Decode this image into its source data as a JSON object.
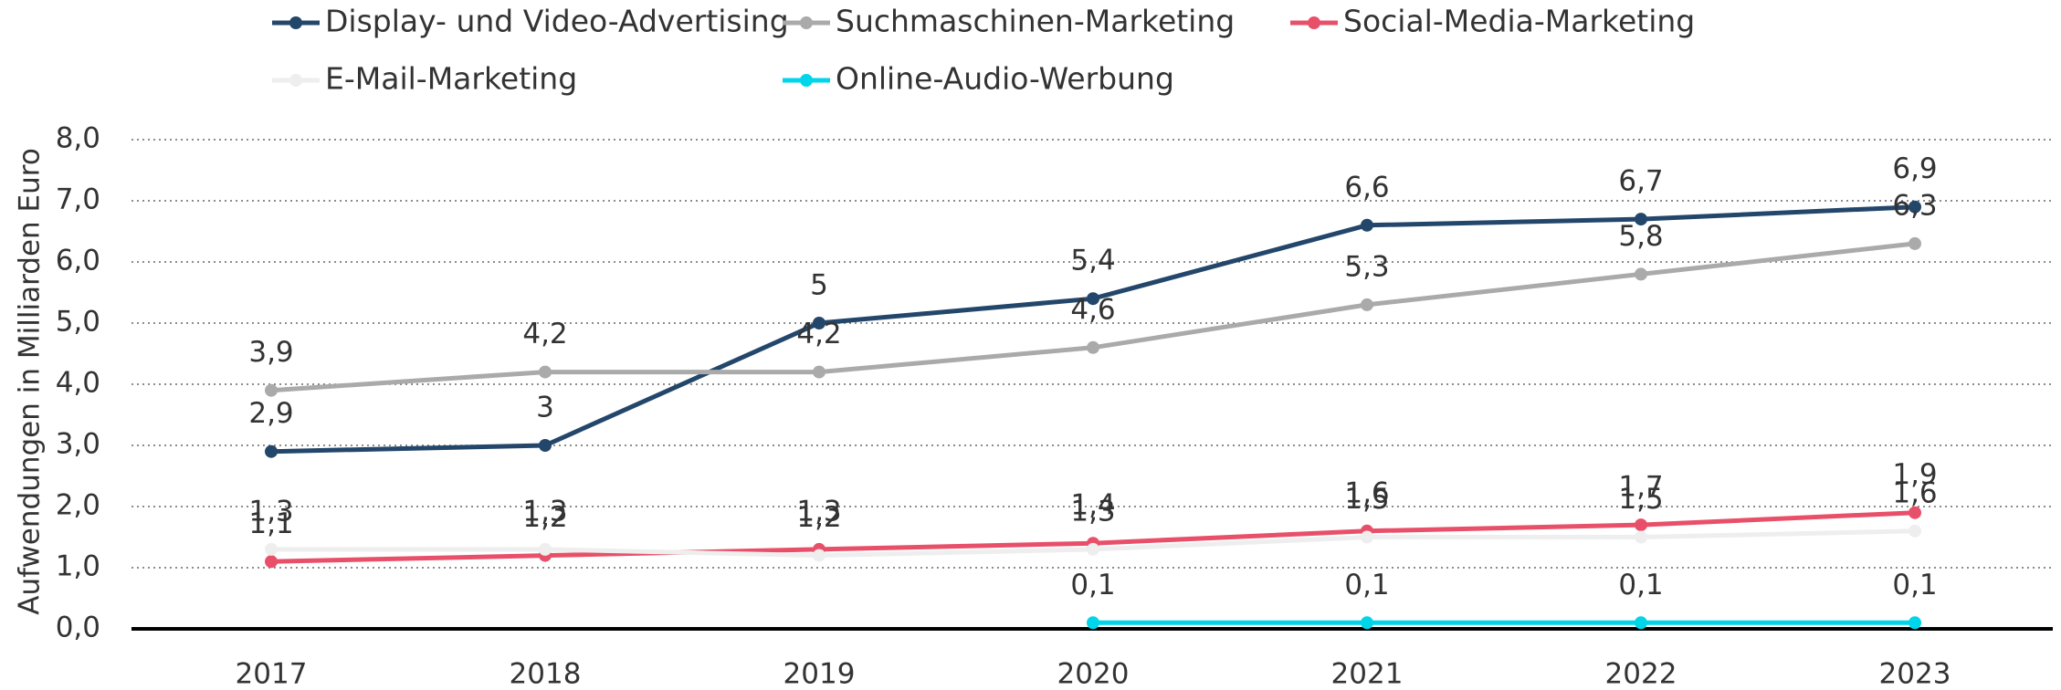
{
  "chart_data": {
    "type": "line",
    "y_label": "Aufwendungen in Milliarden Euro",
    "categories": [
      "2017",
      "2018",
      "2019",
      "2020",
      "2021",
      "2022",
      "2023"
    ],
    "series": [
      {
        "name": "Display- und Video-Advertising",
        "color": "#23466b",
        "values": [
          2.9,
          3,
          5,
          5.4,
          6.6,
          6.7,
          6.9
        ],
        "value_labels": [
          "2,9",
          "3",
          "5",
          "5,4",
          "6,6",
          "6,7",
          "6,9"
        ]
      },
      {
        "name": "Suchmaschinen-Marketing",
        "color": "#aaaaaa",
        "values": [
          3.9,
          4.2,
          4.2,
          4.6,
          5.3,
          5.8,
          6.3
        ],
        "value_labels": [
          "3,9",
          "4,2",
          "4,2",
          "4,6",
          "5,3",
          "5,8",
          "6,3"
        ]
      },
      {
        "name": "Social-Media-Marketing",
        "color": "#e8506a",
        "values": [
          1.1,
          1.2,
          1.3,
          1.4,
          1.6,
          1.7,
          1.9
        ],
        "value_labels": [
          "1,1",
          "1,2",
          "1,3",
          "1,4",
          "1,6",
          "1,7",
          "1,9"
        ]
      },
      {
        "name": "E-Mail-Marketing",
        "color": "#eeeeee",
        "values": [
          1.3,
          1.3,
          1.2,
          1.3,
          1.5,
          1.5,
          1.6
        ],
        "value_labels": [
          "1,3",
          "1,3",
          "1,2",
          "1,3",
          "1,5",
          "1,5",
          "1,6"
        ]
      },
      {
        "name": "Online-Audio-Werbung",
        "color": "#00d5ea",
        "values": [
          null,
          null,
          null,
          0.1,
          0.1,
          0.1,
          0.1
        ],
        "value_labels": [
          null,
          null,
          null,
          "0,1",
          "0,1",
          "0,1",
          "0,1"
        ]
      }
    ],
    "ylim": [
      0,
      8
    ],
    "yticks": [
      {
        "value": 0,
        "label": "0,0"
      },
      {
        "value": 1,
        "label": "1,0"
      },
      {
        "value": 2,
        "label": "2,0"
      },
      {
        "value": 3,
        "label": "3,0"
      },
      {
        "value": 4,
        "label": "4,0"
      },
      {
        "value": 5,
        "label": "5,0"
      },
      {
        "value": 6,
        "label": "6,0"
      },
      {
        "value": 7,
        "label": "7,0"
      },
      {
        "value": 8,
        "label": "8,0"
      }
    ],
    "grid": true
  }
}
